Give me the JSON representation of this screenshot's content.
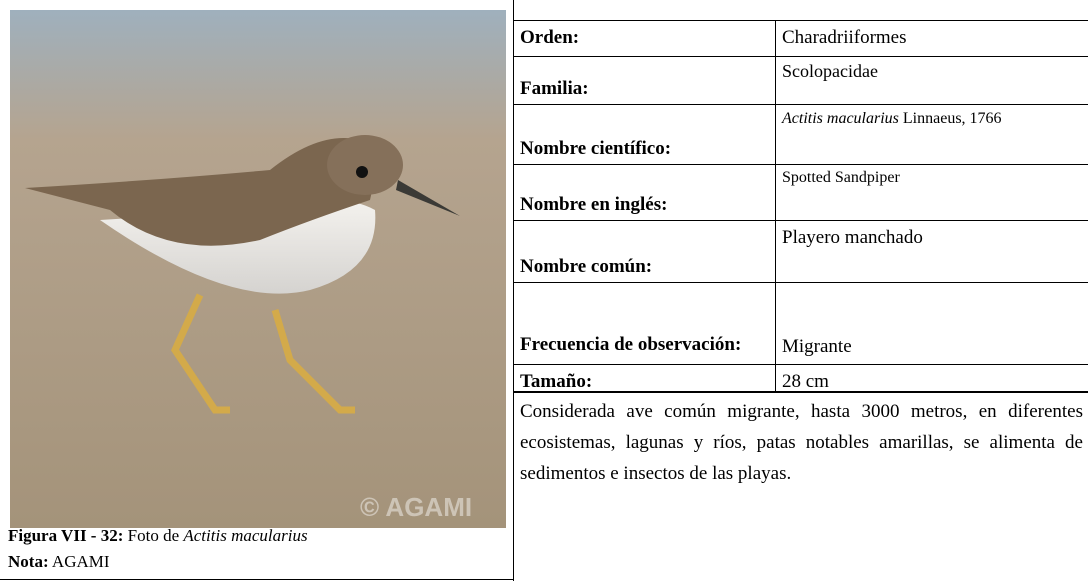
{
  "figure": {
    "watermark": "© AGAMI",
    "caption": {
      "label": "Figura VII - 32:",
      "text": "Foto de",
      "species": "Actitis macularius"
    },
    "note": {
      "label": "Nota:",
      "text": "AGAMI"
    }
  },
  "table": {
    "rows": [
      {
        "label": "Orden:",
        "value": "Charadriiformes"
      },
      {
        "label": "Familia:",
        "value": "Scolopacidae"
      },
      {
        "label": "Nombre científico:",
        "value": {
          "species": "Actitis macularius",
          "authority": "Linnaeus, 1766"
        }
      },
      {
        "label": "Nombre en inglés:",
        "value": "Spotted Sandpiper"
      },
      {
        "label": "Nombre común:",
        "value": "Playero manchado"
      },
      {
        "label": "Frecuencia de observación:",
        "value": "Migrante"
      },
      {
        "label": "Tamaño:",
        "value": "28 cm"
      }
    ],
    "description": "Considerada ave común migrante, hasta 3000 metros, en diferentes ecosistemas, lagunas y ríos, patas notables amarillas, se alimenta de sedimentos e insectos de las playas."
  }
}
